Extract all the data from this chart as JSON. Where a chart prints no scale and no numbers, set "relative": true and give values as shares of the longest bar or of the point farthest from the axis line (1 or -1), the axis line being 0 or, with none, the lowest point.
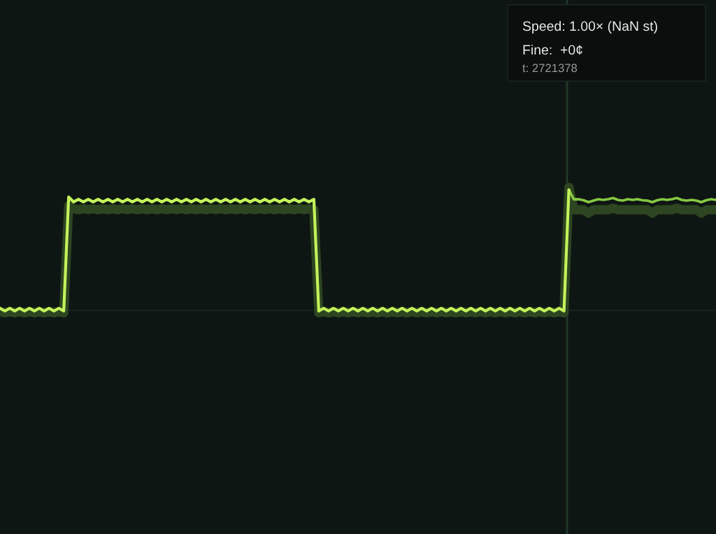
{
  "chart_data": {
    "type": "line",
    "relative": true,
    "categories": [
      null,
      null,
      null,
      null,
      null,
      null,
      null,
      null,
      null,
      null,
      null,
      null,
      null,
      null,
      null,
      null,
      null,
      null,
      null,
      null,
      null,
      null,
      null,
      null,
      null,
      null,
      null,
      null,
      null,
      null,
      null,
      null,
      null,
      null,
      null,
      null,
      null,
      null,
      null,
      null,
      null,
      null,
      null,
      null,
      null,
      null,
      null,
      null,
      null,
      null,
      null,
      null,
      null,
      null,
      null,
      null,
      null,
      null,
      null,
      null,
      null,
      null,
      null,
      null,
      null,
      null,
      null,
      null,
      null,
      null,
      null,
      null,
      null,
      null,
      null,
      null,
      null,
      null,
      null,
      null,
      null,
      null,
      null,
      null,
      null,
      null,
      null,
      null,
      null,
      null,
      null,
      null,
      null,
      null,
      null,
      null,
      null,
      null,
      null,
      null,
      null,
      null,
      null,
      null,
      null,
      null,
      null,
      null,
      null,
      null,
      null,
      null,
      null,
      null,
      null,
      null,
      null,
      null,
      null,
      null,
      null,
      null,
      null,
      null,
      null,
      null,
      null,
      null,
      null,
      null,
      null,
      null,
      null,
      null,
      null,
      null,
      null,
      null,
      null,
      null,
      null,
      null,
      null,
      null,
      null,
      null,
      null
    ],
    "series": [
      {
        "color": "#c3f25a",
        "values": [
          0.017,
          -0.006,
          0.017,
          -0.006,
          0.017,
          -0.006,
          0.017,
          -0.006,
          0.017,
          -0.006,
          0.017,
          -0.006,
          0.017,
          -0.006,
          0.922,
          0.881,
          0.903,
          0.881,
          0.903,
          0.881,
          0.903,
          0.881,
          0.903,
          0.881,
          0.903,
          0.881,
          0.903,
          0.881,
          0.903,
          0.881,
          0.903,
          0.881,
          0.903,
          0.881,
          0.903,
          0.881,
          0.903,
          0.881,
          0.903,
          0.881,
          0.903,
          0.881,
          0.903,
          0.881,
          0.903,
          0.881,
          0.903,
          0.881,
          0.903,
          0.881,
          0.903,
          0.881,
          0.903,
          0.881,
          0.903,
          0.881,
          0.903,
          0.881,
          0.903,
          0.881,
          0.903,
          0.881,
          0.903,
          0.881,
          0.903,
          -0.006,
          0.017,
          -0.006,
          0.017,
          -0.006,
          0.017,
          -0.006,
          0.017,
          -0.006,
          0.017,
          -0.006,
          0.017,
          -0.006,
          0.017,
          -0.006,
          0.017,
          -0.006,
          0.017,
          -0.006,
          0.017,
          -0.006,
          0.017,
          -0.006,
          0.017,
          -0.006,
          0.017,
          -0.006,
          0.017,
          -0.006,
          0.017,
          -0.006,
          0.017,
          -0.006,
          0.017,
          -0.006,
          0.017,
          -0.006,
          0.017,
          -0.006,
          0.017,
          -0.006,
          0.017,
          -0.006,
          0.017,
          -0.006,
          0.017,
          -0.006,
          0.017,
          -0.006,
          0.017,
          -0.006,
          0.979,
          null,
          null,
          null,
          null,
          null,
          null,
          null,
          null,
          null,
          null,
          null,
          null,
          null,
          null,
          null,
          null,
          null,
          null,
          null,
          null,
          null,
          null,
          null,
          null,
          null,
          null,
          null,
          null,
          null,
          null
        ]
      },
      {
        "color": "#86c843",
        "values": [
          null,
          null,
          null,
          null,
          null,
          null,
          null,
          null,
          null,
          null,
          null,
          null,
          null,
          null,
          null,
          null,
          null,
          null,
          null,
          null,
          null,
          null,
          null,
          null,
          null,
          null,
          null,
          null,
          null,
          null,
          null,
          null,
          null,
          null,
          null,
          null,
          null,
          null,
          null,
          null,
          null,
          null,
          null,
          null,
          null,
          null,
          null,
          null,
          null,
          null,
          null,
          null,
          null,
          null,
          null,
          null,
          null,
          null,
          null,
          null,
          null,
          null,
          null,
          null,
          null,
          null,
          null,
          null,
          null,
          null,
          null,
          null,
          null,
          null,
          null,
          null,
          null,
          null,
          null,
          null,
          null,
          null,
          null,
          null,
          null,
          null,
          null,
          null,
          null,
          null,
          null,
          null,
          null,
          null,
          null,
          null,
          null,
          null,
          null,
          null,
          null,
          null,
          null,
          null,
          null,
          null,
          null,
          null,
          null,
          null,
          null,
          null,
          null,
          null,
          null,
          null,
          0.979,
          0.903,
          0.903,
          0.895,
          0.879,
          0.892,
          0.903,
          0.898,
          0.903,
          0.913,
          0.898,
          0.892,
          0.903,
          0.898,
          0.903,
          0.895,
          0.892,
          0.879,
          0.895,
          0.903,
          0.898,
          0.903,
          0.913,
          0.898,
          0.892,
          0.898,
          0.892,
          0.879,
          0.895,
          0.903,
          0.898
        ]
      },
      {
        "color": "#2d4521",
        "values": [
          -0.01,
          -0.02,
          -0.01,
          -0.02,
          -0.01,
          -0.02,
          -0.01,
          -0.02,
          -0.01,
          -0.02,
          -0.01,
          -0.02,
          -0.01,
          -0.02,
          0.85,
          0.825,
          0.819,
          0.825,
          0.819,
          0.825,
          0.819,
          0.825,
          0.819,
          0.825,
          0.819,
          0.825,
          0.819,
          0.825,
          0.819,
          0.825,
          0.819,
          0.825,
          0.819,
          0.825,
          0.819,
          0.825,
          0.819,
          0.825,
          0.819,
          0.825,
          0.819,
          0.825,
          0.819,
          0.825,
          0.819,
          0.825,
          0.819,
          0.825,
          0.819,
          0.825,
          0.819,
          0.825,
          0.819,
          0.825,
          0.819,
          0.825,
          0.819,
          0.825,
          0.819,
          0.825,
          0.819,
          0.825,
          0.819,
          0.825,
          0.819,
          -0.02,
          -0.01,
          -0.02,
          -0.01,
          -0.02,
          -0.01,
          -0.02,
          -0.01,
          -0.02,
          -0.01,
          -0.02,
          -0.01,
          -0.02,
          -0.01,
          -0.02,
          -0.01,
          -0.02,
          -0.01,
          -0.02,
          -0.01,
          -0.02,
          -0.01,
          -0.02,
          -0.01,
          -0.02,
          -0.01,
          -0.02,
          -0.01,
          -0.02,
          -0.01,
          -0.02,
          -0.01,
          -0.02,
          -0.01,
          -0.02,
          -0.01,
          -0.02,
          -0.01,
          -0.02,
          -0.01,
          -0.02,
          -0.01,
          -0.02,
          -0.01,
          -0.02,
          -0.01,
          -0.02,
          -0.01,
          -0.02,
          -0.01,
          -0.02,
          1.0,
          0.818,
          0.818,
          0.818,
          0.79,
          0.818,
          0.818,
          0.818,
          0.818,
          0.83,
          0.818,
          0.818,
          0.818,
          0.818,
          0.818,
          0.818,
          0.818,
          0.79,
          0.818,
          0.818,
          0.818,
          0.818,
          0.83,
          0.818,
          0.818,
          0.818,
          0.818,
          0.79,
          0.818,
          0.818,
          0.818
        ]
      }
    ],
    "ref_lines": [
      {
        "axis": "y",
        "value": 0,
        "color": "#1d2a22"
      }
    ],
    "annotations": [
      "Speed: 1.00× (NaN st)",
      "Fine:  +0¢",
      "t: 2721378"
    ]
  }
}
